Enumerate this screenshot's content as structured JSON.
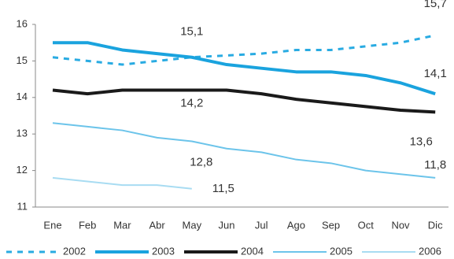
{
  "chart_data": {
    "type": "line",
    "categories": [
      "Ene",
      "Feb",
      "Mar",
      "Abr",
      "May",
      "Jun",
      "Jul",
      "Ago",
      "Sep",
      "Oct",
      "Nov",
      "Dic"
    ],
    "ylim": [
      11,
      16
    ],
    "yticks": [
      11,
      12,
      13,
      14,
      15,
      16
    ],
    "legend": "bottom",
    "series": [
      {
        "name": "2002",
        "color": "#29abe2",
        "dashed": true,
        "line_width": 3,
        "values": [
          15.1,
          15.0,
          14.9,
          15.0,
          15.1,
          15.15,
          15.2,
          15.3,
          15.3,
          15.4,
          15.5,
          15.7
        ],
        "value_labels": [
          null,
          null,
          null,
          null,
          "15,1",
          null,
          null,
          null,
          null,
          null,
          null,
          "15,7"
        ]
      },
      {
        "name": "2003",
        "color": "#1aa3de",
        "dashed": false,
        "line_width": 4,
        "values": [
          15.5,
          15.5,
          15.3,
          15.2,
          15.1,
          14.9,
          14.8,
          14.7,
          14.7,
          14.6,
          14.4,
          14.1
        ],
        "value_labels": [
          null,
          null,
          null,
          null,
          null,
          null,
          null,
          null,
          null,
          null,
          null,
          "14,1"
        ]
      },
      {
        "name": "2004",
        "color": "#1a1a1a",
        "dashed": false,
        "line_width": 4,
        "values": [
          14.2,
          14.1,
          14.2,
          14.2,
          14.2,
          14.2,
          14.1,
          13.95,
          13.85,
          13.75,
          13.65,
          13.6
        ],
        "value_labels": [
          null,
          null,
          null,
          null,
          "14,2",
          null,
          null,
          null,
          null,
          null,
          null,
          "13,6"
        ]
      },
      {
        "name": "2005",
        "color": "#6cc4ea",
        "dashed": false,
        "line_width": 2,
        "values": [
          13.3,
          13.2,
          13.1,
          12.9,
          12.8,
          12.6,
          12.5,
          12.3,
          12.2,
          12.0,
          11.9,
          11.8
        ],
        "value_labels": [
          null,
          null,
          null,
          null,
          "12,8",
          null,
          null,
          null,
          null,
          null,
          null,
          "11,8"
        ]
      },
      {
        "name": "2006",
        "color": "#a8dcf2",
        "dashed": false,
        "line_width": 2,
        "values": [
          11.8,
          11.7,
          11.6,
          11.6,
          11.5,
          null,
          null,
          null,
          null,
          null,
          null,
          null
        ],
        "value_labels": [
          null,
          null,
          null,
          null,
          "11,5",
          null,
          null,
          null,
          null,
          null,
          null,
          null
        ]
      }
    ]
  }
}
